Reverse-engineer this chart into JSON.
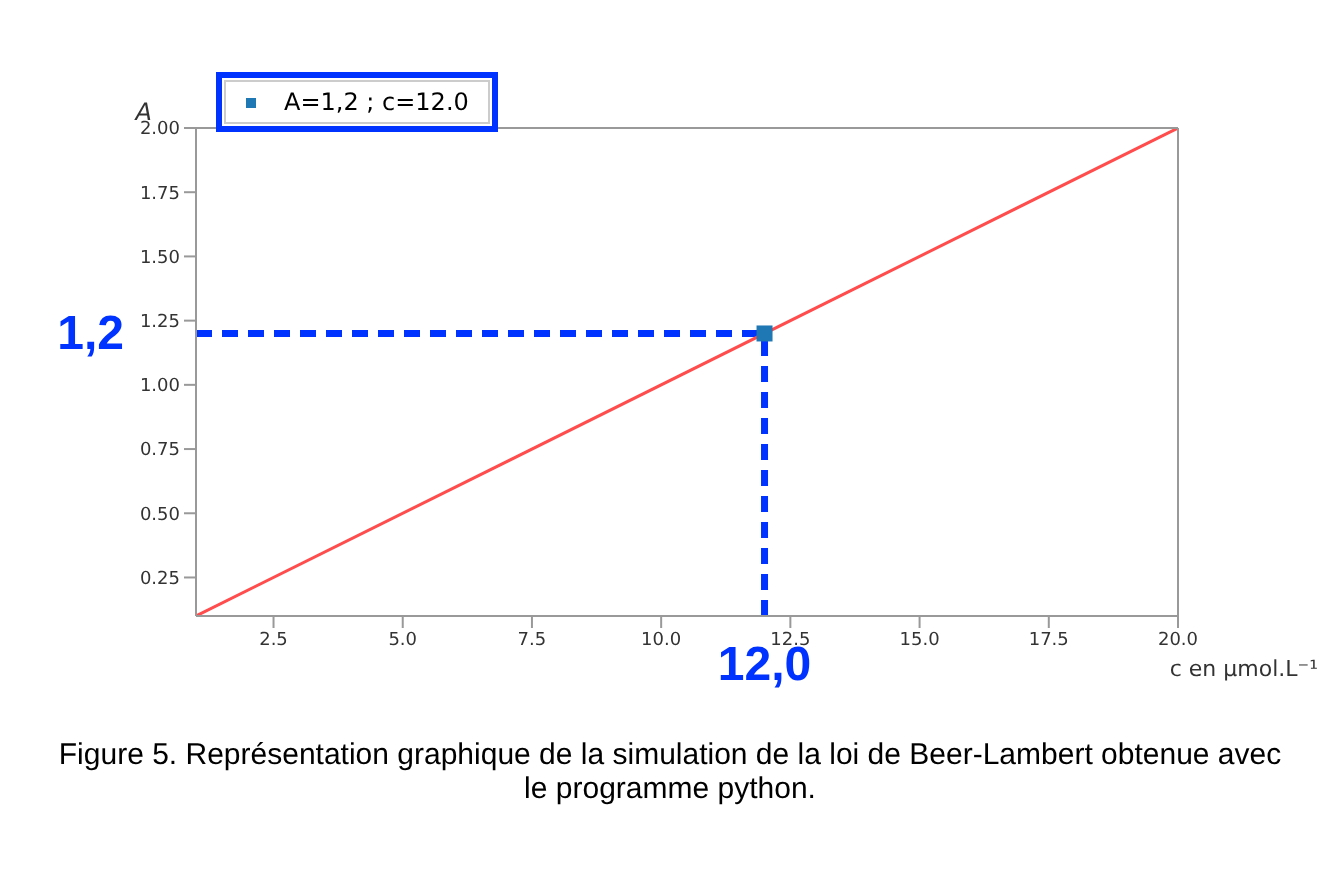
{
  "chart_data": {
    "type": "line",
    "xlabel": "c en µmol.L⁻¹",
    "ylabel": "A",
    "series": [
      {
        "color": "#ff4d4d",
        "x": [
          1,
          20
        ],
        "values": [
          0.1,
          2.0
        ],
        "marker": "none"
      },
      {
        "type": "scatter",
        "name": "A=1,2 ; c=12.0",
        "color": "#1f77b4",
        "x": [
          12
        ],
        "values": [
          1.2
        ],
        "marker": "square"
      }
    ],
    "xlim": [
      1,
      20
    ],
    "xticks": [
      2.5,
      {
        "value": 5,
        "label": "5.0"
      },
      7.5,
      {
        "value": 10,
        "label": "10.0"
      },
      12.5,
      {
        "value": 15,
        "label": "15.0"
      },
      17.5,
      {
        "value": 20,
        "label": "20.0"
      }
    ],
    "ylim": [
      0.1,
      2.0
    ],
    "yticks": [
      0.25,
      {
        "value": 0.5,
        "label": "0.50"
      },
      0.75,
      {
        "value": 1,
        "label": "1.00"
      },
      1.25,
      {
        "value": 1.5,
        "label": "1.50"
      },
      1.75,
      {
        "value": 2,
        "label": "2.00"
      }
    ],
    "ref_lines": [
      {
        "axis": "y",
        "value": 1.2,
        "label": "1,2",
        "color": "#0033ff",
        "line_style": "dashed"
      },
      {
        "axis": "x",
        "value": 12,
        "label": "12,0",
        "color": "#0033ff",
        "line_style": "dashed"
      }
    ],
    "legend": "top left",
    "grid": false,
    "annotations": [
      "Figure 5. Représentation graphique de la simulation de la loi de Beer-Lambert obtenue avec le programme python."
    ]
  }
}
